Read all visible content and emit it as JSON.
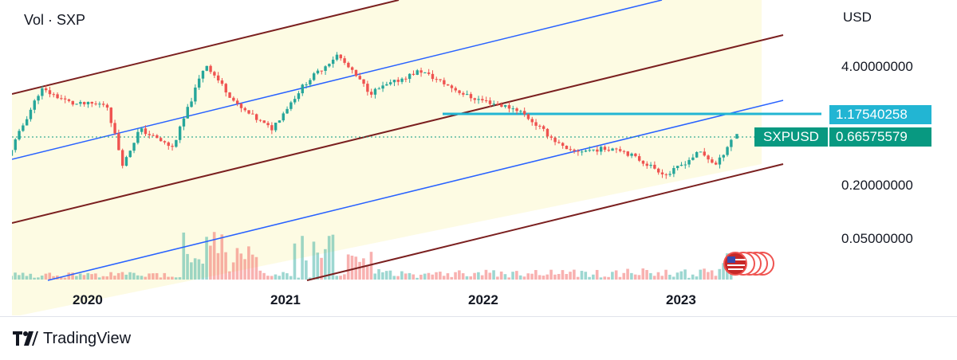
{
  "header": {
    "volume_label": "Vol · SXP",
    "currency": "USD"
  },
  "footer": {
    "brand": "TradingView"
  },
  "price_tags": {
    "resistance": "1.17540258",
    "symbol": "SXPUSD",
    "last": "0.66575579"
  },
  "colors": {
    "up": "#26a69a",
    "down": "#ef5350",
    "channel_outer": "#7b2020",
    "channel_mid": "#2962ff",
    "resistance": "#22b5d3",
    "band_fill": "#fdfbe3",
    "last_price": "#089981"
  },
  "chart_data": {
    "type": "candlestick",
    "symbol": "SXPUSD",
    "y_scale": "log",
    "y_ticks": [
      "4.00000000",
      "0.20000000",
      "0.05000000"
    ],
    "x_ticks": [
      "2020",
      "2021",
      "2022",
      "2023"
    ],
    "last_price": 0.66575579,
    "resistance_level": 1.17540258,
    "legend": "none",
    "grid": false,
    "approx_price_path": [
      {
        "date": "2019-08",
        "price": 0.4
      },
      {
        "date": "2019-10",
        "price": 2.2
      },
      {
        "date": "2019-12",
        "price": 1.5
      },
      {
        "date": "2020-02",
        "price": 1.5
      },
      {
        "date": "2020-03",
        "price": 0.32
      },
      {
        "date": "2020-04",
        "price": 0.8
      },
      {
        "date": "2020-06",
        "price": 0.5
      },
      {
        "date": "2020-08",
        "price": 4.2
      },
      {
        "date": "2020-10",
        "price": 1.4
      },
      {
        "date": "2020-12",
        "price": 0.8
      },
      {
        "date": "2021-02",
        "price": 2.5
      },
      {
        "date": "2021-04",
        "price": 5.2
      },
      {
        "date": "2021-06",
        "price": 2.0
      },
      {
        "date": "2021-09",
        "price": 3.5
      },
      {
        "date": "2021-12",
        "price": 1.8
      },
      {
        "date": "2022-03",
        "price": 1.3
      },
      {
        "date": "2022-06",
        "price": 0.45
      },
      {
        "date": "2022-09",
        "price": 0.5
      },
      {
        "date": "2022-12",
        "price": 0.25
      },
      {
        "date": "2023-02",
        "price": 0.45
      },
      {
        "date": "2023-03",
        "price": 0.32
      },
      {
        "date": "2023-04",
        "price": 0.66575579
      }
    ]
  }
}
